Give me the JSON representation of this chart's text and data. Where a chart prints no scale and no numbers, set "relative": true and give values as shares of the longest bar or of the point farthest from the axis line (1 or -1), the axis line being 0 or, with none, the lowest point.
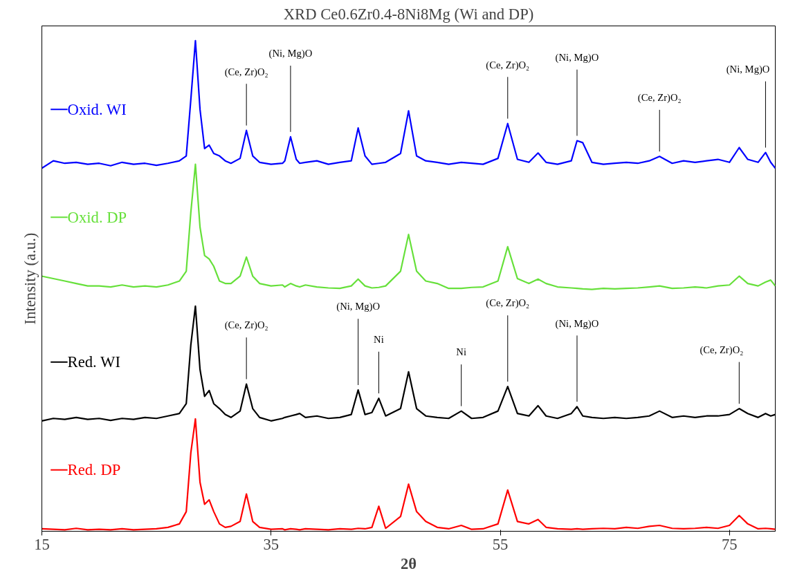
{
  "chart_data": {
    "type": "line",
    "title": "XRD Ce0.6Zr0.4-8Ni8Mg (Wi and DP)",
    "xlabel": "2θ",
    "ylabel": "Intensity (a.u.)",
    "relative": true,
    "x": [
      15,
      16,
      17,
      18,
      19,
      20,
      21,
      22,
      23,
      24,
      25,
      26,
      27,
      27.6,
      28.0,
      28.4,
      28.8,
      29.2,
      29.6,
      30.0,
      30.5,
      31,
      31.5,
      32.3,
      32.85,
      33.4,
      34,
      35,
      36,
      36.2,
      36.7,
      37.2,
      37.5,
      38,
      39,
      40,
      41,
      42,
      42.6,
      43.2,
      43.8,
      44.4,
      45,
      46.3,
      47.0,
      47.7,
      48.5,
      49.5,
      50.5,
      51.6,
      52.5,
      53.5,
      54.8,
      55.65,
      56.5,
      57.5,
      58.3,
      59,
      60,
      61.2,
      61.7,
      62.2,
      63,
      64,
      65,
      66,
      67,
      68,
      68.9,
      70,
      71,
      72,
      73,
      74,
      75,
      75.85,
      76.6,
      77.5,
      78.15,
      78.6,
      79
    ],
    "xlim": [
      15,
      79
    ],
    "xticks": [
      15,
      35,
      55,
      75
    ],
    "grid": false,
    "line_style": "solid",
    "legend": "left",
    "series": [
      {
        "name": "Oxid. WI",
        "color": "#0000ff",
        "values": [
          0.74,
          0.755,
          0.75,
          0.752,
          0.748,
          0.75,
          0.745,
          0.752,
          0.748,
          0.75,
          0.746,
          0.75,
          0.755,
          0.765,
          0.88,
          1.0,
          0.86,
          0.78,
          0.787,
          0.77,
          0.765,
          0.755,
          0.75,
          0.76,
          0.817,
          0.765,
          0.752,
          0.748,
          0.75,
          0.755,
          0.804,
          0.758,
          0.75,
          0.752,
          0.755,
          0.748,
          0.752,
          0.755,
          0.822,
          0.765,
          0.748,
          0.75,
          0.752,
          0.77,
          0.857,
          0.765,
          0.755,
          0.752,
          0.748,
          0.752,
          0.75,
          0.748,
          0.76,
          0.831,
          0.758,
          0.752,
          0.771,
          0.752,
          0.748,
          0.755,
          0.796,
          0.792,
          0.752,
          0.748,
          0.75,
          0.752,
          0.75,
          0.755,
          0.764,
          0.75,
          0.755,
          0.752,
          0.755,
          0.758,
          0.752,
          0.782,
          0.758,
          0.752,
          0.772,
          0.752,
          0.74
        ]
      },
      {
        "name": "Oxid. DP",
        "color": "#66e03a",
        "values": [
          0.52,
          0.515,
          0.51,
          0.505,
          0.5,
          0.5,
          0.498,
          0.502,
          0.498,
          0.5,
          0.498,
          0.502,
          0.51,
          0.53,
          0.65,
          0.748,
          0.62,
          0.562,
          0.555,
          0.54,
          0.51,
          0.505,
          0.505,
          0.52,
          0.559,
          0.52,
          0.505,
          0.5,
          0.502,
          0.498,
          0.505,
          0.5,
          0.498,
          0.502,
          0.498,
          0.496,
          0.495,
          0.5,
          0.514,
          0.5,
          0.496,
          0.497,
          0.5,
          0.53,
          0.605,
          0.53,
          0.51,
          0.505,
          0.495,
          0.495,
          0.497,
          0.498,
          0.51,
          0.58,
          0.515,
          0.505,
          0.514,
          0.505,
          0.498,
          0.496,
          0.495,
          0.494,
          0.493,
          0.495,
          0.494,
          0.495,
          0.496,
          0.498,
          0.5,
          0.495,
          0.496,
          0.498,
          0.496,
          0.5,
          0.502,
          0.52,
          0.505,
          0.5,
          0.508,
          0.512,
          0.5
        ]
      },
      {
        "name": "Red. WI",
        "color": "#000000",
        "values": [
          0.225,
          0.23,
          0.228,
          0.232,
          0.228,
          0.23,
          0.226,
          0.23,
          0.228,
          0.232,
          0.23,
          0.235,
          0.24,
          0.26,
          0.38,
          0.459,
          0.33,
          0.275,
          0.287,
          0.26,
          0.25,
          0.238,
          0.232,
          0.245,
          0.3,
          0.25,
          0.232,
          0.225,
          0.23,
          0.232,
          0.235,
          0.238,
          0.24,
          0.232,
          0.235,
          0.23,
          0.232,
          0.238,
          0.288,
          0.238,
          0.242,
          0.271,
          0.235,
          0.25,
          0.325,
          0.25,
          0.235,
          0.232,
          0.23,
          0.245,
          0.23,
          0.232,
          0.245,
          0.295,
          0.24,
          0.235,
          0.256,
          0.235,
          0.23,
          0.24,
          0.254,
          0.235,
          0.232,
          0.23,
          0.232,
          0.23,
          0.232,
          0.235,
          0.245,
          0.232,
          0.235,
          0.232,
          0.235,
          0.235,
          0.238,
          0.25,
          0.24,
          0.232,
          0.24,
          0.235,
          0.238
        ]
      },
      {
        "name": "Red. DP",
        "color": "#ff0000",
        "values": [
          0.005,
          0.004,
          0.003,
          0.006,
          0.003,
          0.004,
          0.003,
          0.005,
          0.003,
          0.004,
          0.005,
          0.008,
          0.015,
          0.04,
          0.16,
          0.229,
          0.1,
          0.055,
          0.064,
          0.04,
          0.015,
          0.008,
          0.01,
          0.02,
          0.076,
          0.02,
          0.008,
          0.004,
          0.005,
          0.003,
          0.005,
          0.004,
          0.003,
          0.005,
          0.004,
          0.003,
          0.005,
          0.004,
          0.006,
          0.005,
          0.008,
          0.051,
          0.006,
          0.03,
          0.096,
          0.04,
          0.02,
          0.008,
          0.005,
          0.012,
          0.004,
          0.005,
          0.015,
          0.084,
          0.02,
          0.015,
          0.024,
          0.008,
          0.005,
          0.004,
          0.005,
          0.004,
          0.005,
          0.006,
          0.005,
          0.008,
          0.006,
          0.01,
          0.012,
          0.006,
          0.005,
          0.006,
          0.008,
          0.006,
          0.012,
          0.032,
          0.015,
          0.005,
          0.006,
          0.005,
          0.004
        ]
      }
    ],
    "annotations": [
      {
        "text": "(Ce, Zr)O₂",
        "x": 32.85,
        "y": 0.817
      },
      {
        "text": "(Ni, Mg)O",
        "x": 36.7,
        "y": 0.804
      },
      {
        "text": "(Ce, Zr)O₂",
        "x": 55.65,
        "y": 0.831
      },
      {
        "text": "(Ni, Mg)O",
        "x": 61.7,
        "y": 0.796
      },
      {
        "text": "(Ce, Zr)O₂",
        "x": 68.9,
        "y": 0.764
      },
      {
        "text": "(Ni, Mg)O",
        "x": 78.15,
        "y": 0.772
      },
      {
        "text": "(Ce, Zr)O₂",
        "x": 32.85,
        "y": 0.3
      },
      {
        "text": "(Ni, Mg)O",
        "x": 42.6,
        "y": 0.288
      },
      {
        "text": "Ni",
        "x": 44.4,
        "y": 0.271
      },
      {
        "text": "(Ce, Zr)O₂",
        "x": 55.65,
        "y": 0.295
      },
      {
        "text": "Ni",
        "x": 51.6,
        "y": 0.245
      },
      {
        "text": "(Ni, Mg)O",
        "x": 61.7,
        "y": 0.254
      },
      {
        "text": "(Ce, Zr)O₂",
        "x": 75.85,
        "y": 0.25
      }
    ]
  }
}
